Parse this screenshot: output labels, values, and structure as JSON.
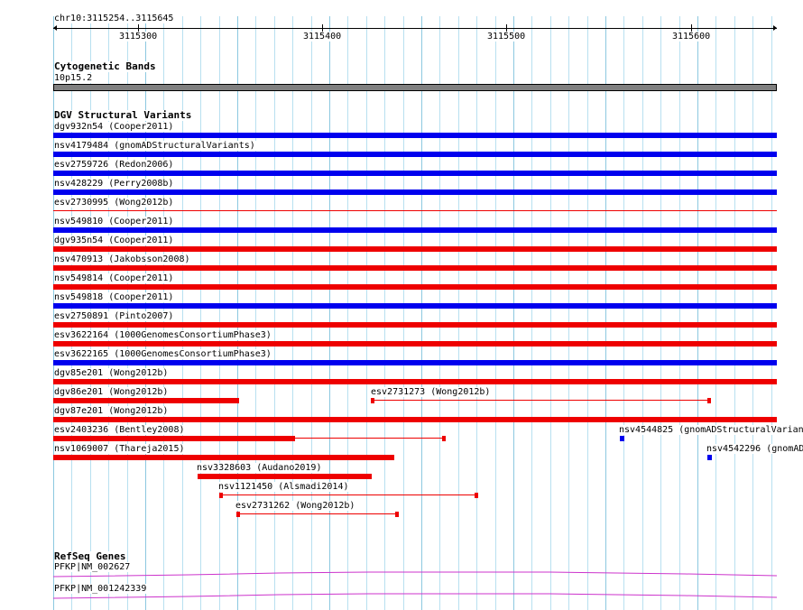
{
  "ruler": {
    "position": "chr10:3115254..3115645",
    "ticks": [
      "3115300",
      "3115400",
      "3115500",
      "3115600"
    ]
  },
  "cytobands": {
    "title": "Cytogenetic Bands",
    "band": "10p15.2",
    "color": "#808080"
  },
  "dgv": {
    "title": "DGV Structural Variants",
    "colors": {
      "gain": "#0000ee",
      "loss": "#ee0000"
    },
    "features": [
      {
        "label": "dgv932n54 (Cooper2011)",
        "type": "gain"
      },
      {
        "label": "nsv4179484 (gnomADStructuralVariants)",
        "type": "gain"
      },
      {
        "label": "esv2759726 (Redon2006)",
        "type": "gain"
      },
      {
        "label": "nsv428229 (Perry2008b)",
        "type": "gain"
      },
      {
        "label": "esv2730995 (Wong2012b)",
        "type": "loss"
      },
      {
        "label": "nsv549810 (Cooper2011)",
        "type": "gain"
      },
      {
        "label": "dgv935n54 (Cooper2011)",
        "type": "loss"
      },
      {
        "label": "nsv470913 (Jakobsson2008)",
        "type": "loss"
      },
      {
        "label": "nsv549814 (Cooper2011)",
        "type": "loss"
      },
      {
        "label": "nsv549818 (Cooper2011)",
        "type": "gain"
      },
      {
        "label": "esv2750891 (Pinto2007)",
        "type": "loss"
      },
      {
        "label": "esv3622164 (1000GenomesConsortiumPhase3)",
        "type": "loss"
      },
      {
        "label": "esv3622165 (1000GenomesConsortiumPhase3)",
        "type": "gain"
      },
      {
        "label": "dgv85e201 (Wong2012b)",
        "type": "loss"
      },
      {
        "label": "dgv86e201 (Wong2012b)",
        "type": "loss"
      },
      {
        "label": "esv2731273 (Wong2012b)",
        "type": "loss"
      },
      {
        "label": "dgv87e201 (Wong2012b)",
        "type": "loss"
      },
      {
        "label": "esv2403236 (Bentley2008)",
        "type": "loss"
      },
      {
        "label": "nsv4544825 (gnomADStructuralVarian",
        "type": "gain"
      },
      {
        "label": "nsv1069007 (Thareja2015)",
        "type": "loss"
      },
      {
        "label": "nsv4542296 (gnomAD",
        "type": "gain"
      },
      {
        "label": "nsv3328603 (Audano2019)",
        "type": "loss"
      },
      {
        "label": "nsv1121450 (Alsmadi2014)",
        "type": "loss"
      },
      {
        "label": "esv2731262 (Wong2012b)",
        "type": "loss"
      }
    ]
  },
  "refseq": {
    "title": "RefSeq Genes",
    "color": "#cc33cc",
    "genes": [
      {
        "label": "PFKP|NM_002627"
      },
      {
        "label": "PFKP|NM_001242339"
      }
    ]
  }
}
